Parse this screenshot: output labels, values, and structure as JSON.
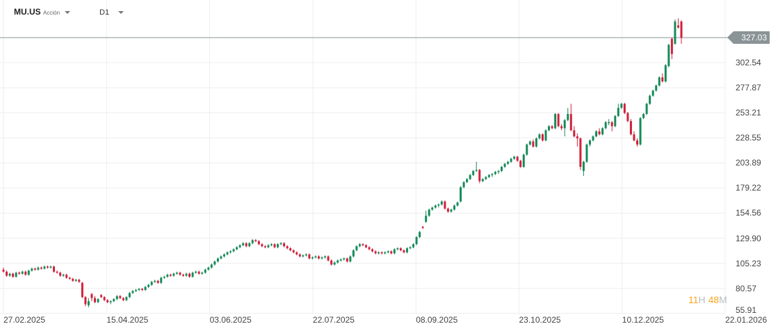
{
  "header": {
    "symbol": "MU.US",
    "instrument_type": "Acción",
    "timeframe": "D1"
  },
  "current_price": "327.03",
  "countdown": {
    "hours": "11",
    "hours_unit": "H",
    "minutes": "48",
    "minutes_unit": "M"
  },
  "colors": {
    "up": "#178a5a",
    "down": "#d0213b",
    "price_line": "#8a9396",
    "countdown": "#f5a623",
    "grid": "#eeeeee"
  },
  "chart_data": {
    "type": "candlestick",
    "title": "",
    "grid": true,
    "y_axis_position": "right",
    "ylim": [
      55.91,
      340
    ],
    "y_ticks": [
      "302.54",
      "277.87",
      "253.21",
      "228.55",
      "203.89",
      "179.22",
      "154.56",
      "129.90",
      "105.23",
      "80.57",
      "55.91"
    ],
    "x_ticks": [
      "27.02.2025",
      "15.04.2025",
      "03.06.2025",
      "22.07.2025",
      "08.09.2025",
      "23.10.2025",
      "10.12.2025",
      "22.01.2026"
    ],
    "candles_ohlc": [
      [
        99,
        101,
        96,
        97
      ],
      [
        97,
        98,
        92,
        93
      ],
      [
        93,
        96,
        92,
        95
      ],
      [
        95,
        96,
        91,
        92
      ],
      [
        92,
        97,
        91,
        96
      ],
      [
        96,
        97,
        94,
        95
      ],
      [
        95,
        98,
        94,
        97
      ],
      [
        97,
        98,
        93,
        94
      ],
      [
        94,
        99,
        93,
        98
      ],
      [
        98,
        101,
        97,
        100
      ],
      [
        100,
        101,
        98,
        99
      ],
      [
        99,
        102,
        98,
        101
      ],
      [
        101,
        102,
        99,
        100
      ],
      [
        100,
        103,
        99,
        102
      ],
      [
        102,
        103,
        100,
        101
      ],
      [
        101,
        103,
        100,
        102
      ],
      [
        102,
        103,
        96,
        97
      ],
      [
        97,
        98,
        95,
        96
      ],
      [
        96,
        97,
        92,
        93
      ],
      [
        93,
        95,
        92,
        94
      ],
      [
        94,
        95,
        90,
        91
      ],
      [
        91,
        92,
        89,
        90
      ],
      [
        90,
        91,
        87,
        88
      ],
      [
        88,
        90,
        87,
        89
      ],
      [
        89,
        90,
        86,
        87
      ],
      [
        86,
        87,
        71,
        72
      ],
      [
        72,
        73,
        63,
        65
      ],
      [
        64,
        71,
        62,
        68
      ],
      [
        75,
        76,
        68,
        71
      ],
      [
        71,
        73,
        66,
        67
      ],
      [
        67,
        71,
        66,
        70
      ],
      [
        74,
        75,
        71,
        72
      ],
      [
        72,
        73,
        68,
        69
      ],
      [
        69,
        70,
        66,
        67
      ],
      [
        67,
        69,
        65,
        68
      ],
      [
        68,
        71,
        67,
        70
      ],
      [
        70,
        74,
        69,
        73
      ],
      [
        73,
        74,
        70,
        71
      ],
      [
        71,
        72,
        68,
        69
      ],
      [
        69,
        73,
        68,
        72
      ],
      [
        72,
        77,
        71,
        76
      ],
      [
        76,
        79,
        75,
        78
      ],
      [
        78,
        80,
        77,
        79
      ],
      [
        79,
        81,
        78,
        80
      ],
      [
        80,
        81,
        78,
        79
      ],
      [
        79,
        83,
        78,
        82
      ],
      [
        82,
        85,
        81,
        84
      ],
      [
        84,
        88,
        83,
        87
      ],
      [
        87,
        89,
        86,
        88
      ],
      [
        88,
        89,
        85,
        86
      ],
      [
        86,
        92,
        85,
        91
      ],
      [
        91,
        93,
        90,
        92
      ],
      [
        92,
        95,
        91,
        94
      ],
      [
        94,
        95,
        92,
        93
      ],
      [
        93,
        96,
        92,
        95
      ],
      [
        95,
        97,
        94,
        96
      ],
      [
        96,
        97,
        93,
        94
      ],
      [
        94,
        95,
        92,
        93
      ],
      [
        93,
        96,
        92,
        95
      ],
      [
        95,
        96,
        91,
        92
      ],
      [
        92,
        97,
        91,
        96
      ],
      [
        96,
        98,
        95,
        97
      ],
      [
        97,
        98,
        94,
        95
      ],
      [
        95,
        97,
        94,
        96
      ],
      [
        96,
        100,
        95,
        99
      ],
      [
        99,
        102,
        98,
        101
      ],
      [
        101,
        105,
        100,
        104
      ],
      [
        104,
        108,
        103,
        107
      ],
      [
        107,
        111,
        106,
        110
      ],
      [
        110,
        113,
        109,
        112
      ],
      [
        112,
        115,
        111,
        114
      ],
      [
        114,
        117,
        113,
        116
      ],
      [
        116,
        118,
        115,
        117
      ],
      [
        117,
        120,
        116,
        119
      ],
      [
        119,
        122,
        118,
        121
      ],
      [
        121,
        124,
        120,
        123
      ],
      [
        123,
        126,
        122,
        125
      ],
      [
        125,
        126,
        121,
        122
      ],
      [
        122,
        126,
        121,
        125
      ],
      [
        125,
        129,
        124,
        128
      ],
      [
        128,
        129,
        126,
        127
      ],
      [
        127,
        128,
        123,
        124
      ],
      [
        124,
        125,
        121,
        122
      ],
      [
        122,
        123,
        120,
        121
      ],
      [
        121,
        124,
        120,
        123
      ],
      [
        123,
        125,
        122,
        124
      ],
      [
        124,
        125,
        120,
        121
      ],
      [
        121,
        125,
        120,
        124
      ],
      [
        124,
        126,
        123,
        125
      ],
      [
        125,
        126,
        121,
        122
      ],
      [
        122,
        123,
        119,
        120
      ],
      [
        120,
        121,
        117,
        118
      ],
      [
        118,
        119,
        115,
        116
      ],
      [
        116,
        117,
        113,
        114
      ],
      [
        114,
        115,
        111,
        112
      ],
      [
        112,
        114,
        111,
        113
      ],
      [
        113,
        115,
        112,
        114
      ],
      [
        114,
        115,
        109,
        110
      ],
      [
        110,
        112,
        109,
        111
      ],
      [
        111,
        113,
        110,
        112
      ],
      [
        112,
        113,
        109,
        110
      ],
      [
        110,
        112,
        109,
        111
      ],
      [
        111,
        113,
        110,
        112
      ],
      [
        112,
        113,
        107,
        108
      ],
      [
        108,
        109,
        103,
        104
      ],
      [
        104,
        107,
        103,
        106
      ],
      [
        106,
        109,
        105,
        108
      ],
      [
        108,
        110,
        107,
        109
      ],
      [
        109,
        111,
        108,
        110
      ],
      [
        110,
        111,
        106,
        107
      ],
      [
        107,
        113,
        106,
        112
      ],
      [
        112,
        119,
        111,
        118
      ],
      [
        118,
        123,
        117,
        122
      ],
      [
        122,
        125,
        121,
        124
      ],
      [
        124,
        125,
        122,
        123
      ],
      [
        123,
        124,
        120,
        121
      ],
      [
        121,
        122,
        118,
        119
      ],
      [
        119,
        120,
        116,
        117
      ],
      [
        117,
        118,
        114,
        115
      ],
      [
        115,
        117,
        114,
        116
      ],
      [
        116,
        117,
        114,
        115
      ],
      [
        115,
        117,
        114,
        116
      ],
      [
        116,
        118,
        115,
        117
      ],
      [
        117,
        118,
        114,
        115
      ],
      [
        115,
        120,
        114,
        119
      ],
      [
        119,
        121,
        118,
        120
      ],
      [
        120,
        121,
        117,
        118
      ],
      [
        118,
        119,
        115,
        116
      ],
      [
        116,
        121,
        115,
        120
      ],
      [
        120,
        122,
        119,
        121
      ],
      [
        121,
        125,
        120,
        124
      ],
      [
        124,
        132,
        123,
        131
      ],
      [
        131,
        137,
        130,
        136
      ],
      [
        141,
        142,
        139,
        140
      ],
      [
        146,
        157,
        145,
        152
      ],
      [
        152,
        159,
        151,
        158
      ],
      [
        158,
        161,
        157,
        160
      ],
      [
        160,
        163,
        159,
        162
      ],
      [
        162,
        164,
        160,
        163
      ],
      [
        163,
        167,
        162,
        166
      ],
      [
        166,
        167,
        158,
        159
      ],
      [
        159,
        160,
        155,
        156
      ],
      [
        156,
        159,
        155,
        158
      ],
      [
        158,
        163,
        157,
        162
      ],
      [
        162,
        166,
        161,
        165
      ],
      [
        166,
        181,
        165,
        180
      ],
      [
        180,
        186,
        179,
        185
      ],
      [
        185,
        189,
        184,
        188
      ],
      [
        188,
        193,
        187,
        192
      ],
      [
        192,
        197,
        191,
        196
      ],
      [
        196,
        205,
        195,
        197
      ],
      [
        197,
        198,
        184,
        186
      ],
      [
        186,
        189,
        185,
        188
      ],
      [
        188,
        191,
        187,
        190
      ],
      [
        190,
        193,
        189,
        192
      ],
      [
        192,
        194,
        190,
        193
      ],
      [
        193,
        196,
        192,
        195
      ],
      [
        195,
        197,
        193,
        196
      ],
      [
        196,
        201,
        195,
        200
      ],
      [
        200,
        204,
        199,
        203
      ],
      [
        203,
        206,
        202,
        205
      ],
      [
        205,
        209,
        204,
        208
      ],
      [
        208,
        211,
        207,
        210
      ],
      [
        210,
        211,
        205,
        206
      ],
      [
        206,
        207,
        199,
        200
      ],
      [
        200,
        213,
        199,
        212
      ],
      [
        212,
        223,
        211,
        222
      ],
      [
        222,
        226,
        221,
        225
      ],
      [
        225,
        227,
        219,
        220
      ],
      [
        220,
        229,
        219,
        228
      ],
      [
        228,
        233,
        227,
        232
      ],
      [
        232,
        233,
        225,
        226
      ],
      [
        226,
        237,
        225,
        236
      ],
      [
        236,
        241,
        235,
        240
      ],
      [
        240,
        241,
        237,
        238
      ],
      [
        238,
        253,
        237,
        252
      ],
      [
        252,
        253,
        239,
        240
      ],
      [
        240,
        242,
        236,
        238
      ],
      [
        238,
        247,
        230,
        246
      ],
      [
        246,
        258,
        245,
        252
      ],
      [
        252,
        262,
        235,
        236
      ],
      [
        236,
        240,
        229,
        230
      ],
      [
        230,
        233,
        220,
        228
      ],
      [
        228,
        229,
        197,
        200
      ],
      [
        196,
        206,
        191,
        205
      ],
      [
        205,
        223,
        204,
        222
      ],
      [
        222,
        227,
        220,
        226
      ],
      [
        226,
        231,
        225,
        230
      ],
      [
        230,
        236,
        229,
        235
      ],
      [
        235,
        238,
        231,
        232
      ],
      [
        232,
        239,
        231,
        238
      ],
      [
        238,
        245,
        237,
        244
      ],
      [
        244,
        247,
        241,
        244
      ],
      [
        244,
        245,
        235,
        240
      ],
      [
        240,
        251,
        239,
        250
      ],
      [
        250,
        262,
        249,
        258
      ],
      [
        258,
        263,
        257,
        262
      ],
      [
        262,
        263,
        252,
        253
      ],
      [
        253,
        254,
        244,
        245
      ],
      [
        245,
        247,
        231,
        232
      ],
      [
        232,
        235,
        225,
        226
      ],
      [
        226,
        228,
        220,
        222
      ],
      [
        222,
        249,
        221,
        248
      ],
      [
        248,
        253,
        247,
        252
      ],
      [
        252,
        263,
        251,
        262
      ],
      [
        262,
        271,
        261,
        270
      ],
      [
        270,
        276,
        269,
        275
      ],
      [
        275,
        281,
        274,
        280
      ],
      [
        280,
        289,
        279,
        288
      ],
      [
        288,
        292,
        283,
        284
      ],
      [
        284,
        301,
        283,
        300
      ],
      [
        299,
        321,
        298,
        320
      ],
      [
        326,
        327,
        306,
        311
      ],
      [
        321,
        345,
        320,
        343
      ],
      [
        339,
        346,
        336,
        337
      ],
      [
        343,
        344,
        321,
        327
      ]
    ]
  }
}
